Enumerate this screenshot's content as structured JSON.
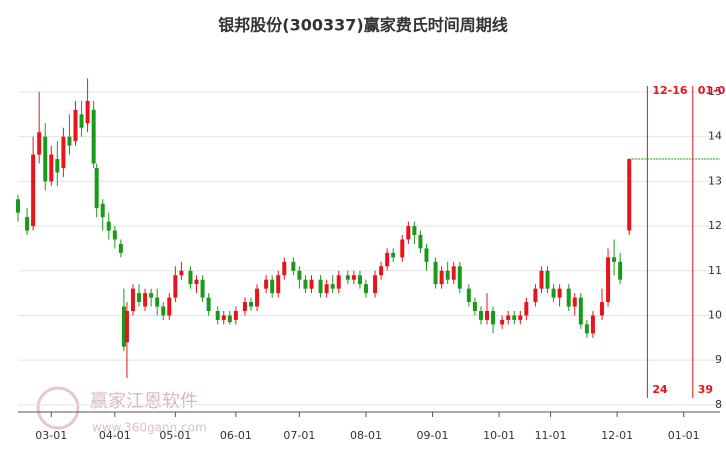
{
  "chart_data": {
    "type": "candlestick",
    "title": "银邦股份(300337)赢家费氏时间周期线",
    "watermark": {
      "brand": "赢家江恩软件",
      "url": "www.360gann.com"
    },
    "up_color": "#e8141b",
    "down_color": "#1a9a1a",
    "x": [
      0,
      3,
      5,
      7,
      9,
      11,
      13,
      15,
      17,
      19,
      21,
      23,
      25,
      26,
      28,
      30,
      32,
      34,
      35,
      36,
      38,
      40,
      42,
      44,
      46,
      48,
      50,
      52,
      54,
      57,
      59,
      61,
      63,
      66,
      68,
      70,
      72,
      75,
      77,
      79,
      82,
      84,
      86,
      88,
      91,
      93,
      95,
      97,
      100,
      102,
      104,
      106,
      109,
      111,
      113,
      115,
      118,
      120,
      122,
      124,
      127,
      129,
      131,
      133,
      135,
      138,
      140,
      142,
      144,
      146,
      149,
      151,
      153,
      155,
      157,
      160,
      162,
      164,
      166,
      168,
      171,
      173,
      175,
      177,
      179,
      182,
      184,
      186,
      188,
      190,
      193,
      195,
      197,
      199,
      202
    ],
    "open": [
      12.6,
      12.2,
      12.0,
      13.6,
      14.0,
      13.0,
      13.5,
      13.3,
      14.0,
      13.9,
      14.5,
      14.3,
      14.6,
      13.3,
      12.5,
      12.1,
      11.9,
      11.6,
      10.2,
      9.4,
      10.1,
      10.5,
      10.2,
      10.5,
      10.4,
      10.2,
      10.0,
      10.4,
      10.9,
      11.0,
      10.7,
      10.8,
      10.4,
      10.1,
      9.9,
      10.0,
      9.9,
      10.1,
      10.3,
      10.2,
      10.6,
      10.8,
      10.5,
      10.9,
      11.2,
      11.0,
      10.8,
      10.6,
      10.8,
      10.5,
      10.7,
      10.6,
      10.9,
      10.8,
      10.9,
      10.7,
      10.5,
      10.9,
      11.1,
      11.4,
      11.3,
      11.7,
      12.0,
      11.8,
      11.5,
      11.2,
      10.7,
      11.0,
      10.8,
      11.1,
      10.6,
      10.3,
      10.1,
      9.9,
      10.1,
      9.8,
      9.9,
      10.0,
      9.9,
      10.0,
      10.3,
      10.6,
      11.0,
      10.6,
      10.4,
      10.6,
      10.2,
      10.4,
      9.8,
      9.6,
      10.0,
      10.3,
      11.3,
      11.2,
      11.9
    ],
    "close": [
      12.3,
      11.9,
      13.6,
      14.1,
      13.0,
      13.6,
      13.2,
      14.0,
      13.8,
      14.6,
      14.2,
      14.8,
      13.4,
      12.4,
      12.2,
      11.9,
      11.7,
      11.4,
      9.3,
      10.1,
      10.6,
      10.3,
      10.5,
      10.4,
      10.2,
      10.0,
      10.4,
      10.9,
      11.0,
      10.7,
      10.8,
      10.4,
      10.1,
      9.9,
      10.0,
      9.85,
      10.1,
      10.3,
      10.2,
      10.6,
      10.8,
      10.5,
      10.9,
      11.2,
      11.0,
      10.8,
      10.6,
      10.8,
      10.5,
      10.7,
      10.6,
      10.9,
      10.8,
      10.9,
      10.7,
      10.5,
      10.9,
      11.1,
      11.4,
      11.3,
      11.7,
      12.0,
      11.8,
      11.5,
      11.2,
      10.7,
      11.0,
      10.8,
      11.1,
      10.6,
      10.3,
      10.1,
      9.9,
      10.1,
      9.8,
      9.9,
      10.0,
      9.9,
      10.0,
      10.3,
      10.6,
      11.0,
      10.6,
      10.4,
      10.6,
      10.2,
      10.4,
      9.8,
      9.6,
      10.0,
      10.3,
      11.3,
      11.2,
      10.8,
      13.5
    ],
    "high": [
      12.7,
      12.4,
      14.0,
      15.0,
      14.3,
      13.8,
      13.9,
      14.2,
      14.5,
      14.8,
      14.8,
      15.3,
      14.8,
      13.4,
      12.6,
      12.3,
      12.0,
      11.7,
      10.6,
      10.3,
      10.7,
      10.7,
      10.6,
      10.6,
      10.6,
      10.3,
      10.5,
      11.1,
      11.2,
      11.1,
      10.9,
      10.9,
      10.5,
      10.2,
      10.1,
      10.1,
      10.2,
      10.4,
      10.4,
      10.7,
      10.9,
      10.9,
      11.0,
      11.3,
      11.3,
      11.1,
      10.9,
      10.9,
      10.9,
      10.8,
      10.9,
      11.0,
      11.0,
      11.0,
      11.0,
      10.8,
      11.0,
      11.2,
      11.5,
      11.5,
      11.8,
      12.1,
      12.1,
      11.9,
      11.6,
      11.3,
      11.1,
      11.2,
      11.2,
      11.2,
      10.7,
      10.4,
      10.2,
      10.5,
      10.2,
      10.0,
      10.1,
      10.1,
      10.1,
      10.4,
      10.7,
      11.1,
      11.1,
      10.7,
      10.7,
      10.7,
      10.5,
      10.5,
      9.9,
      10.1,
      10.6,
      11.5,
      11.7,
      11.4,
      13.5
    ],
    "low": [
      12.1,
      11.8,
      11.9,
      13.4,
      12.8,
      12.9,
      12.9,
      13.1,
      13.6,
      13.8,
      14.0,
      14.1,
      13.3,
      12.2,
      11.9,
      11.7,
      11.5,
      11.3,
      9.2,
      8.6,
      10.0,
      10.2,
      10.1,
      10.2,
      10.0,
      9.9,
      9.9,
      10.3,
      10.8,
      10.6,
      10.5,
      10.3,
      10.0,
      9.8,
      9.8,
      9.8,
      9.8,
      10.0,
      10.1,
      10.1,
      10.5,
      10.4,
      10.4,
      10.8,
      10.9,
      10.6,
      10.5,
      10.5,
      10.4,
      10.4,
      10.5,
      10.5,
      10.7,
      10.7,
      10.6,
      10.4,
      10.4,
      10.8,
      11.0,
      11.2,
      11.2,
      11.6,
      11.6,
      11.4,
      11.0,
      10.6,
      10.6,
      10.7,
      10.7,
      10.5,
      10.2,
      10.0,
      9.8,
      9.8,
      9.6,
      9.7,
      9.8,
      9.8,
      9.8,
      9.9,
      10.2,
      10.5,
      10.5,
      10.3,
      10.2,
      10.1,
      10.0,
      9.7,
      9.5,
      9.5,
      9.9,
      10.2,
      10.9,
      10.7,
      11.8
    ],
    "reference_level": 13.5,
    "cycle_lines": [
      {
        "x": 208,
        "label": "12-16",
        "count": 24
      },
      {
        "x": 223,
        "label": "01-0",
        "count": 39
      }
    ],
    "xlim": [
      0,
      232
    ],
    "xticks": [
      {
        "value": 11,
        "label": "03-01"
      },
      {
        "value": 32,
        "label": "04-01"
      },
      {
        "value": 52,
        "label": "05-01"
      },
      {
        "value": 72,
        "label": "06-01"
      },
      {
        "value": 93,
        "label": "07-01"
      },
      {
        "value": 115,
        "label": "08-01"
      },
      {
        "value": 137,
        "label": "09-01"
      },
      {
        "value": 159,
        "label": "10-01"
      },
      {
        "value": 176,
        "label": "11-01"
      },
      {
        "value": 198,
        "label": "12-01"
      },
      {
        "value": 220,
        "label": "01-01"
      }
    ],
    "ylim": [
      7.84,
      15.38
    ],
    "yticks": [
      8,
      9,
      10,
      11,
      12,
      13,
      14,
      15
    ],
    "grid": true
  }
}
